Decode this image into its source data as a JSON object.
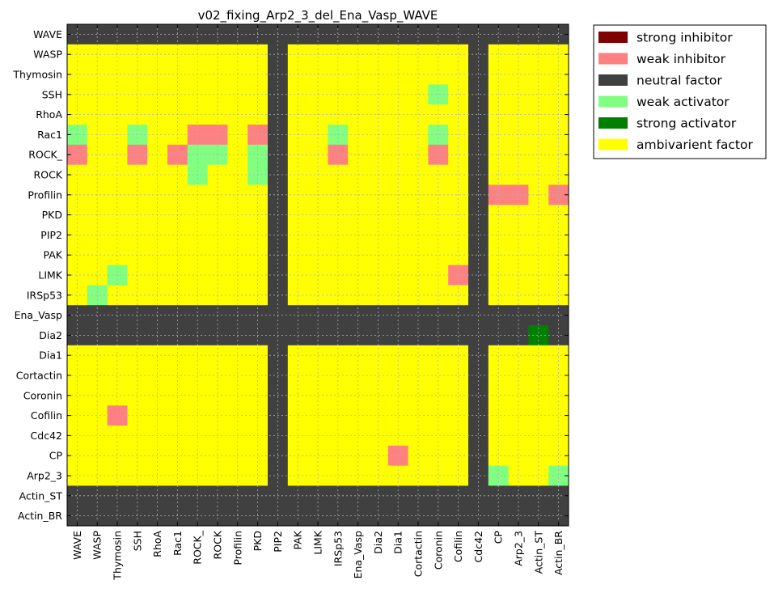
{
  "chart_data": {
    "type": "heatmap",
    "title": "v02_fixing_Arp2_3_del_Ena_Vasp_WAVE",
    "xlabel": "",
    "ylabel": "",
    "x_categories": [
      "WAVE",
      "WASP",
      "Thymosin",
      "SSH",
      "RhoA",
      "Rac1",
      "ROCK_",
      "ROCK",
      "Profilin",
      "PKD",
      "PIP2",
      "PAK",
      "LIMK",
      "IRSp53",
      "Ena_Vasp",
      "Dia2",
      "Dia1",
      "Cortactin",
      "Coronin",
      "Cofilin",
      "Cdc42",
      "CP",
      "Arp2_3",
      "Actin_ST",
      "Actin_BR"
    ],
    "y_categories": [
      "WAVE",
      "WASP",
      "Thymosin",
      "SSH",
      "RhoA",
      "Rac1",
      "ROCK_",
      "ROCK",
      "Profilin",
      "PKD",
      "PIP2",
      "PAK",
      "LIMK",
      "IRSp53",
      "Ena_Vasp",
      "Dia2",
      "Dia1",
      "Cortactin",
      "Coronin",
      "Cofilin",
      "Cdc42",
      "CP",
      "Arp2_3",
      "Actin_ST",
      "Actin_BR"
    ],
    "grid": true,
    "legend_position": "outside-top-right",
    "categories_legend": [
      {
        "code": "SI",
        "label": "strong inhibitor",
        "color": "#800000"
      },
      {
        "code": "WI",
        "label": "weak inhibitor",
        "color": "#ff8080"
      },
      {
        "code": "N",
        "label": "neutral factor",
        "color": "#404040"
      },
      {
        "code": "WA",
        "label": "weak activator",
        "color": "#80ff80"
      },
      {
        "code": "SA",
        "label": "strong activator",
        "color": "#008000"
      },
      {
        "code": "A",
        "label": "ambivarient factor",
        "color": "#ffff00"
      }
    ],
    "rows": [
      [
        "N",
        "N",
        "N",
        "N",
        "N",
        "N",
        "N",
        "N",
        "N",
        "N",
        "N",
        "N",
        "N",
        "N",
        "N",
        "N",
        "N",
        "N",
        "N",
        "N",
        "N",
        "N",
        "N",
        "N",
        "N"
      ],
      [
        "A",
        "A",
        "A",
        "A",
        "A",
        "A",
        "A",
        "A",
        "A",
        "A",
        "N",
        "A",
        "A",
        "A",
        "A",
        "A",
        "A",
        "A",
        "A",
        "A",
        "N",
        "A",
        "A",
        "A",
        "A"
      ],
      [
        "A",
        "A",
        "A",
        "A",
        "A",
        "A",
        "A",
        "A",
        "A",
        "A",
        "N",
        "A",
        "A",
        "A",
        "A",
        "A",
        "A",
        "A",
        "A",
        "A",
        "N",
        "A",
        "A",
        "A",
        "A"
      ],
      [
        "A",
        "A",
        "A",
        "A",
        "A",
        "A",
        "A",
        "A",
        "A",
        "A",
        "N",
        "A",
        "A",
        "A",
        "A",
        "A",
        "A",
        "A",
        "WA",
        "A",
        "N",
        "A",
        "A",
        "A",
        "A"
      ],
      [
        "A",
        "A",
        "A",
        "A",
        "A",
        "A",
        "A",
        "A",
        "A",
        "A",
        "N",
        "A",
        "A",
        "A",
        "A",
        "A",
        "A",
        "A",
        "A",
        "A",
        "N",
        "A",
        "A",
        "A",
        "A"
      ],
      [
        "WA",
        "A",
        "A",
        "WA",
        "A",
        "A",
        "WI",
        "WI",
        "A",
        "WI",
        "N",
        "A",
        "A",
        "WA",
        "A",
        "A",
        "A",
        "A",
        "WA",
        "A",
        "N",
        "A",
        "A",
        "A",
        "A"
      ],
      [
        "WI",
        "A",
        "A",
        "WI",
        "A",
        "WI",
        "WA",
        "WA",
        "A",
        "WA",
        "N",
        "A",
        "A",
        "WI",
        "A",
        "A",
        "A",
        "A",
        "WI",
        "A",
        "N",
        "A",
        "A",
        "A",
        "A"
      ],
      [
        "A",
        "A",
        "A",
        "A",
        "A",
        "A",
        "WA",
        "A",
        "A",
        "WA",
        "N",
        "A",
        "A",
        "A",
        "A",
        "A",
        "A",
        "A",
        "A",
        "A",
        "N",
        "A",
        "A",
        "A",
        "A"
      ],
      [
        "A",
        "A",
        "A",
        "A",
        "A",
        "A",
        "A",
        "A",
        "A",
        "A",
        "N",
        "A",
        "A",
        "A",
        "A",
        "A",
        "A",
        "A",
        "A",
        "A",
        "N",
        "WI",
        "WI",
        "A",
        "WI"
      ],
      [
        "A",
        "A",
        "A",
        "A",
        "A",
        "A",
        "A",
        "A",
        "A",
        "A",
        "N",
        "A",
        "A",
        "A",
        "A",
        "A",
        "A",
        "A",
        "A",
        "A",
        "N",
        "A",
        "A",
        "A",
        "A"
      ],
      [
        "A",
        "A",
        "A",
        "A",
        "A",
        "A",
        "A",
        "A",
        "A",
        "A",
        "N",
        "A",
        "A",
        "A",
        "A",
        "A",
        "A",
        "A",
        "A",
        "A",
        "N",
        "A",
        "A",
        "A",
        "A"
      ],
      [
        "A",
        "A",
        "A",
        "A",
        "A",
        "A",
        "A",
        "A",
        "A",
        "A",
        "N",
        "A",
        "A",
        "A",
        "A",
        "A",
        "A",
        "A",
        "A",
        "A",
        "N",
        "A",
        "A",
        "A",
        "A"
      ],
      [
        "A",
        "A",
        "WA",
        "A",
        "A",
        "A",
        "A",
        "A",
        "A",
        "A",
        "N",
        "A",
        "A",
        "A",
        "A",
        "A",
        "A",
        "A",
        "A",
        "WI",
        "N",
        "A",
        "A",
        "A",
        "A"
      ],
      [
        "A",
        "WA",
        "A",
        "A",
        "A",
        "A",
        "A",
        "A",
        "A",
        "A",
        "N",
        "A",
        "A",
        "A",
        "A",
        "A",
        "A",
        "A",
        "A",
        "A",
        "N",
        "A",
        "A",
        "A",
        "A"
      ],
      [
        "N",
        "N",
        "N",
        "N",
        "N",
        "N",
        "N",
        "N",
        "N",
        "N",
        "N",
        "N",
        "N",
        "N",
        "N",
        "N",
        "N",
        "N",
        "N",
        "N",
        "N",
        "N",
        "N",
        "N",
        "N"
      ],
      [
        "N",
        "N",
        "N",
        "N",
        "N",
        "N",
        "N",
        "N",
        "N",
        "N",
        "N",
        "N",
        "N",
        "N",
        "N",
        "N",
        "N",
        "N",
        "N",
        "N",
        "N",
        "N",
        "N",
        "SA",
        "N"
      ],
      [
        "A",
        "A",
        "A",
        "A",
        "A",
        "A",
        "A",
        "A",
        "A",
        "A",
        "N",
        "A",
        "A",
        "A",
        "A",
        "A",
        "A",
        "A",
        "A",
        "A",
        "N",
        "A",
        "A",
        "A",
        "A"
      ],
      [
        "A",
        "A",
        "A",
        "A",
        "A",
        "A",
        "A",
        "A",
        "A",
        "A",
        "N",
        "A",
        "A",
        "A",
        "A",
        "A",
        "A",
        "A",
        "A",
        "A",
        "N",
        "A",
        "A",
        "A",
        "A"
      ],
      [
        "A",
        "A",
        "A",
        "A",
        "A",
        "A",
        "A",
        "A",
        "A",
        "A",
        "N",
        "A",
        "A",
        "A",
        "A",
        "A",
        "A",
        "A",
        "A",
        "A",
        "N",
        "A",
        "A",
        "A",
        "A"
      ],
      [
        "A",
        "A",
        "WI",
        "A",
        "A",
        "A",
        "A",
        "A",
        "A",
        "A",
        "N",
        "A",
        "A",
        "A",
        "A",
        "A",
        "A",
        "A",
        "A",
        "A",
        "N",
        "A",
        "A",
        "A",
        "A"
      ],
      [
        "A",
        "A",
        "A",
        "A",
        "A",
        "A",
        "A",
        "A",
        "A",
        "A",
        "N",
        "A",
        "A",
        "A",
        "A",
        "A",
        "A",
        "A",
        "A",
        "A",
        "N",
        "A",
        "A",
        "A",
        "A"
      ],
      [
        "A",
        "A",
        "A",
        "A",
        "A",
        "A",
        "A",
        "A",
        "A",
        "A",
        "N",
        "A",
        "A",
        "A",
        "A",
        "A",
        "WI",
        "A",
        "A",
        "A",
        "N",
        "A",
        "A",
        "A",
        "A"
      ],
      [
        "A",
        "A",
        "A",
        "A",
        "A",
        "A",
        "A",
        "A",
        "A",
        "A",
        "N",
        "A",
        "A",
        "A",
        "A",
        "A",
        "A",
        "A",
        "A",
        "A",
        "N",
        "WA",
        "A",
        "A",
        "WA"
      ],
      [
        "N",
        "N",
        "N",
        "N",
        "N",
        "N",
        "N",
        "N",
        "N",
        "N",
        "N",
        "N",
        "N",
        "N",
        "N",
        "N",
        "N",
        "N",
        "N",
        "N",
        "N",
        "N",
        "N",
        "N",
        "N"
      ],
      [
        "N",
        "N",
        "N",
        "N",
        "N",
        "N",
        "N",
        "N",
        "N",
        "N",
        "N",
        "N",
        "N",
        "N",
        "N",
        "N",
        "N",
        "N",
        "N",
        "N",
        "N",
        "N",
        "N",
        "N",
        "N"
      ]
    ]
  }
}
